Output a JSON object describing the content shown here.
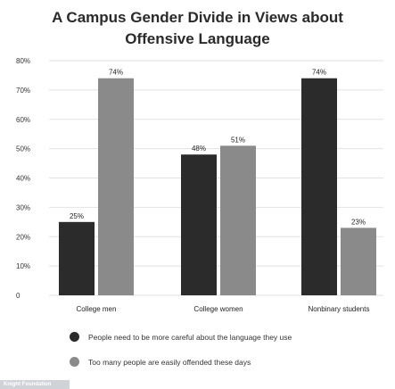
{
  "chart_data": {
    "type": "bar",
    "title_line1": "A Campus Gender Divide in Views about",
    "title_line2": "Offensive Language",
    "categories": [
      "College men",
      "College women",
      "Nonbinary students"
    ],
    "series": [
      {
        "name": "People need to be more careful about the language they use",
        "values": [
          25,
          48,
          74
        ],
        "labels": [
          "25%",
          "48%",
          "74%"
        ],
        "color": "#2b2b2b"
      },
      {
        "name": "Too many people are easily offended these days",
        "values": [
          74,
          51,
          23
        ],
        "labels": [
          "74%",
          "51%",
          "23%"
        ],
        "color": "#8a8a8a"
      }
    ],
    "yticks": [
      "0",
      "10%",
      "20%",
      "30%",
      "40%",
      "50%",
      "60%",
      "70%",
      "80%"
    ],
    "ylim": [
      0,
      80
    ],
    "grid": true,
    "legend_position": "bottom"
  },
  "footer": {
    "source": "Knight Foundation"
  }
}
